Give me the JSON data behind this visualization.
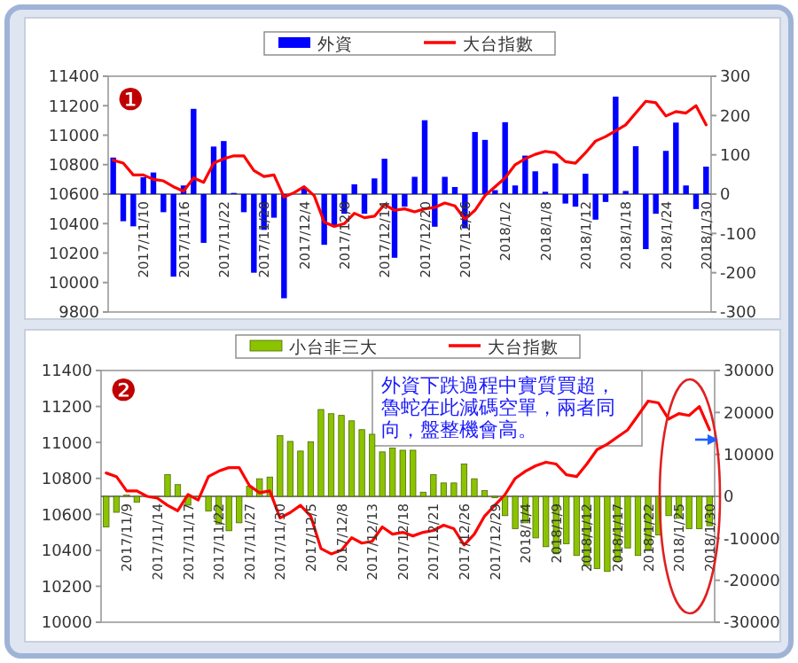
{
  "chart_data": [
    {
      "type": "bar",
      "title": "❶",
      "legend": "top",
      "categories": [
        null,
        null,
        null,
        "2017/11/10",
        null,
        null,
        null,
        "2017/11/16",
        null,
        null,
        null,
        "2017/11/22",
        null,
        null,
        null,
        "2017/11/28",
        null,
        null,
        null,
        "2017/12/4",
        null,
        null,
        null,
        "2017/12/8",
        null,
        null,
        null,
        "2017/12/14",
        null,
        null,
        null,
        "2017/12/20",
        null,
        null,
        null,
        "2017/12/26",
        null,
        null,
        null,
        "2018/1/2",
        null,
        null,
        null,
        "2018/1/8",
        null,
        null,
        null,
        "2018/1/12",
        null,
        null,
        null,
        "2018/1/18",
        null,
        null,
        null,
        "2018/1/24",
        null,
        null,
        null,
        "2018/1/30"
      ],
      "series": [
        {
          "name": "外資",
          "type": "bar",
          "axis": "y2",
          "color": "#0000ff",
          "values": [
            93,
            -69,
            -82,
            43,
            55,
            -46,
            -210,
            22,
            217,
            -124,
            121,
            135,
            3,
            -46,
            -200,
            -91,
            -60,
            -265,
            0,
            15,
            null,
            -129,
            -82,
            -50,
            25,
            -50,
            40,
            90,
            -162,
            -32,
            44,
            188,
            -83,
            44,
            18,
            -87,
            158,
            138,
            10,
            183,
            22,
            98,
            58,
            6,
            78,
            -24,
            -32,
            52,
            -65,
            -20,
            248,
            8,
            122,
            -140,
            -50,
            110,
            182,
            22,
            -38,
            70
          ]
        },
        {
          "name": "大台指數",
          "type": "line",
          "color": "#ff0000",
          "values": [
            10830,
            10810,
            10730,
            10730,
            10700,
            10690,
            10650,
            10620,
            10710,
            10680,
            10810,
            10840,
            10860,
            10860,
            10760,
            10720,
            10730,
            10580,
            10610,
            10650,
            10590,
            10410,
            10380,
            10400,
            10470,
            10440,
            10450,
            10530,
            10490,
            10500,
            10480,
            10500,
            10510,
            10540,
            10520,
            10430,
            10490,
            10590,
            10650,
            10710,
            10800,
            10840,
            10870,
            10890,
            10880,
            10820,
            10810,
            10880,
            10960,
            10990,
            11030,
            11070,
            11150,
            11230,
            11220,
            11130,
            11160,
            11150,
            11200,
            11070
          ]
        }
      ],
      "ylim": [
        9800,
        11400
      ],
      "yticks": [
        9800,
        10000,
        10200,
        10400,
        10600,
        10800,
        11000,
        11200,
        11400
      ],
      "y2lim": [
        -300,
        300
      ],
      "y2ticks": [
        -300,
        -200,
        -100,
        0,
        100,
        200,
        300
      ]
    },
    {
      "type": "bar",
      "title": "❷",
      "legend": "top",
      "categories": [
        null,
        null,
        "2017/11/9",
        null,
        null,
        "2017/11/14",
        null,
        null,
        "2017/11/17",
        null,
        null,
        "2017/11/22",
        null,
        null,
        "2017/11/27",
        null,
        null,
        "2017/11/30",
        null,
        null,
        "2017/12/5",
        null,
        null,
        "2017/12/8",
        null,
        null,
        "2017/12/13",
        null,
        null,
        "2017/12/18",
        null,
        null,
        "2017/12/21",
        null,
        null,
        "2017/12/26",
        null,
        null,
        "2017/12/29",
        null,
        null,
        "2018/1/4",
        null,
        null,
        "2018/1/9",
        null,
        null,
        "2018/1/12",
        null,
        null,
        "2018/1/17",
        null,
        null,
        "2018/1/22",
        null,
        null,
        "2018/1/25",
        null,
        null,
        "2018/1/30"
      ],
      "series": [
        {
          "name": "小台非三大",
          "type": "bar",
          "axis": "y2",
          "color": "#8cc300",
          "values": [
            -7300,
            -3800,
            300,
            -1400,
            0,
            0,
            5200,
            2800,
            -2100,
            0,
            -3500,
            -6600,
            -8200,
            -6300,
            2400,
            4200,
            4600,
            14500,
            13100,
            10800,
            13000,
            20700,
            19700,
            19300,
            18000,
            15900,
            14800,
            10600,
            11500,
            11000,
            11000,
            1000,
            5200,
            3200,
            3200,
            7700,
            4200,
            1400,
            -300,
            -4600,
            -7700,
            -6300,
            -9900,
            -12000,
            -13700,
            -11300,
            -14100,
            -16500,
            -17200,
            -17900,
            -15500,
            -12300,
            -14100,
            -12700,
            -9200,
            -4600,
            -5200,
            -7700,
            -7700,
            -7000
          ]
        },
        {
          "name": "大台指數",
          "type": "line",
          "color": "#ff0000",
          "values": [
            10830,
            10810,
            10730,
            10730,
            10700,
            10690,
            10650,
            10620,
            10710,
            10680,
            10810,
            10840,
            10860,
            10860,
            10760,
            10720,
            10730,
            10580,
            10610,
            10650,
            10590,
            10410,
            10380,
            10400,
            10470,
            10440,
            10450,
            10530,
            10490,
            10500,
            10480,
            10500,
            10510,
            10540,
            10520,
            10430,
            10490,
            10590,
            10650,
            10710,
            10800,
            10840,
            10870,
            10890,
            10880,
            10820,
            10810,
            10880,
            10960,
            10990,
            11030,
            11070,
            11150,
            11230,
            11220,
            11130,
            11160,
            11150,
            11200,
            11070
          ]
        }
      ],
      "ylim": [
        10000,
        11400
      ],
      "yticks": [
        10000,
        10200,
        10400,
        10600,
        10800,
        11000,
        11200,
        11400
      ],
      "y2lim": [
        -30000,
        30000
      ],
      "y2ticks": [
        -30000,
        -20000,
        -10000,
        0,
        10000,
        20000,
        30000
      ],
      "annotations": [
        "外資下跌過程中實質買超，魯蛇在此減碼空單，兩者同向，盤整機會高。"
      ]
    }
  ]
}
